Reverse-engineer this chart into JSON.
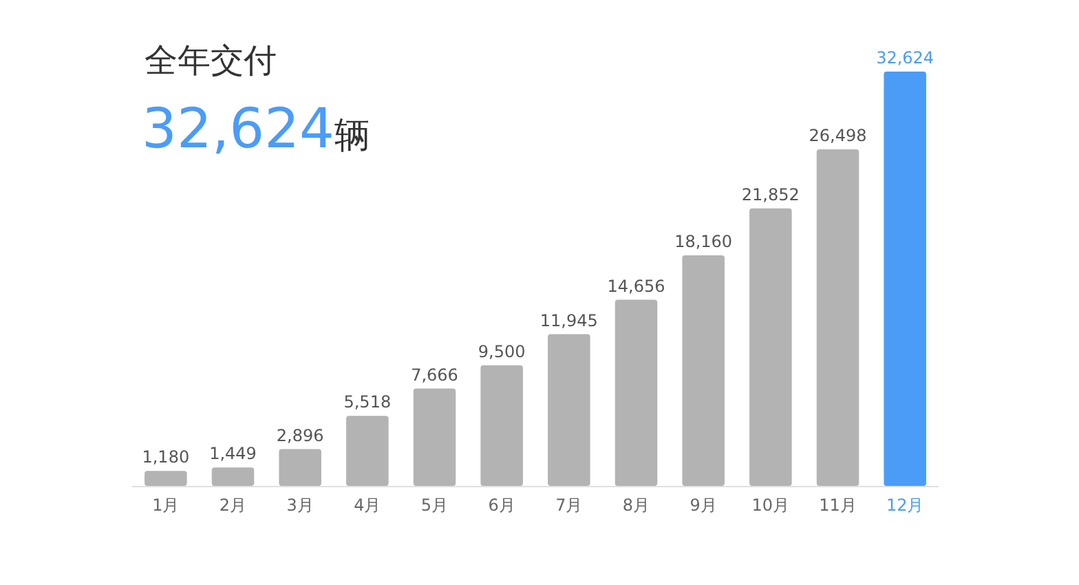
{
  "chart_data": {
    "type": "bar",
    "title": "全年交付",
    "subtitle": "32,624辆",
    "categories": [
      "1月",
      "2月",
      "3月",
      "4月",
      "5月",
      "6月",
      "7月",
      "8月",
      "9月",
      "10月",
      "11月",
      "12月"
    ],
    "values": [
      1180,
      1449,
      2896,
      5518,
      7666,
      9500,
      11945,
      14656,
      18160,
      21852,
      26498,
      32624
    ],
    "colors": [
      "#b3b3b3",
      "#b3b3b3",
      "#b3b3b3",
      "#b3b3b3",
      "#b3b3b3",
      "#b3b3b3",
      "#b3b3b3",
      "#b3b3b3",
      "#b3b3b3",
      "#b3b3b3",
      "#b3b3b3",
      "#4a9cf7"
    ],
    "value_labels": [
      "1,180",
      "1,449",
      "2,896",
      "5,518",
      "7,666",
      "9,500",
      "11,945",
      "14,656",
      "18,160",
      "21,852",
      "26,498",
      "32,624"
    ]
  }
}
